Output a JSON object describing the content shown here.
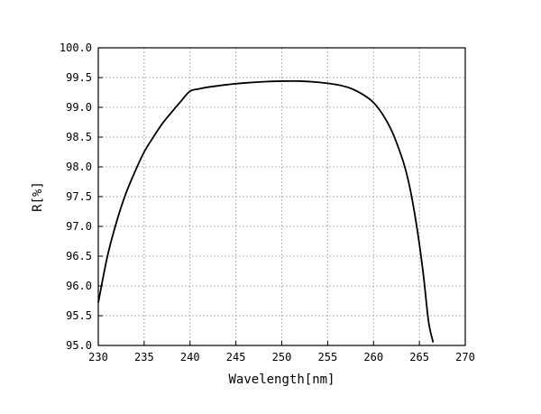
{
  "chart_data": {
    "type": "line",
    "title": "",
    "xlabel": "Wavelength[nm]",
    "ylabel": "R[%]",
    "xlim": [
      230,
      270
    ],
    "ylim": [
      95.0,
      100.0
    ],
    "x_ticks": [
      230,
      235,
      240,
      245,
      250,
      255,
      260,
      265,
      270
    ],
    "y_ticks": [
      95.0,
      95.5,
      96.0,
      96.5,
      97.0,
      97.5,
      98.0,
      98.5,
      99.0,
      99.5,
      100.0
    ],
    "x_tick_labels": [
      "230",
      "235",
      "240",
      "245",
      "250",
      "255",
      "260",
      "265",
      "270"
    ],
    "y_tick_labels": [
      "95.0",
      "95.5",
      "96.0",
      "96.5",
      "97.0",
      "97.5",
      "98.0",
      "98.5",
      "99.0",
      "99.5",
      "100.0"
    ],
    "grid": true,
    "legend": "none",
    "line_color": "#000000",
    "series": [
      {
        "x": [
          230.0,
          231.0,
          232.0,
          233.0,
          234.0,
          235.0,
          236.0,
          237.0,
          238.0,
          239.0,
          240.0,
          241.0,
          242.0,
          244.0,
          246.0,
          248.0,
          250.0,
          252.0,
          254.0,
          256.0,
          257.5,
          259.0,
          260.0,
          261.0,
          262.0,
          263.0,
          263.5,
          264.0,
          264.5,
          265.0,
          265.5,
          266.0,
          266.5
        ],
        "y": [
          95.72,
          96.5,
          97.08,
          97.55,
          97.92,
          98.25,
          98.5,
          98.73,
          98.92,
          99.1,
          99.27,
          99.31,
          99.34,
          99.38,
          99.41,
          99.43,
          99.44,
          99.44,
          99.42,
          99.38,
          99.32,
          99.2,
          99.08,
          98.88,
          98.6,
          98.2,
          97.95,
          97.62,
          97.2,
          96.7,
          96.1,
          95.4,
          95.05
        ]
      }
    ]
  }
}
